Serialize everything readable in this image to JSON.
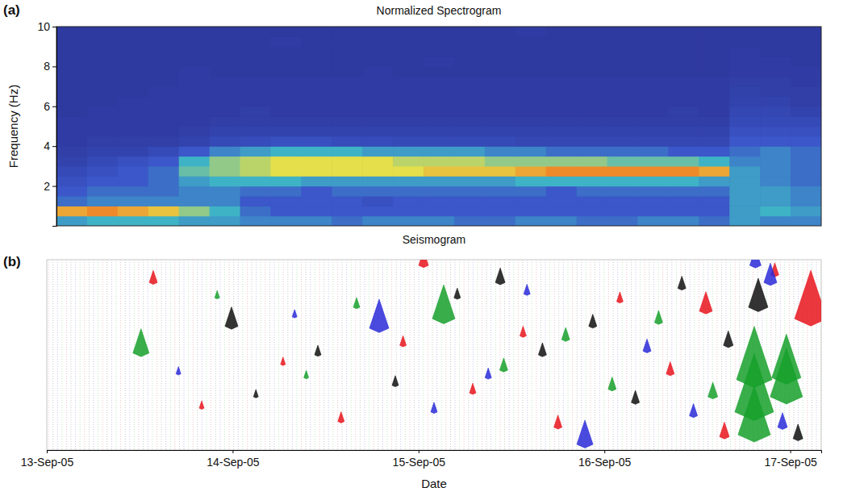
{
  "chart_data": [
    {
      "type": "heatmap",
      "panel": "(a)",
      "title": "Normalized Spectrogram",
      "y_label": "Frequency (Hz)",
      "xlim": [
        "2005-09-13T00:00",
        "2005-09-17T04:00"
      ],
      "ylim": [
        0,
        10
      ],
      "yticks": [
        2,
        4,
        6,
        8,
        10
      ],
      "tick_labels": "y",
      "zlim": [
        0,
        1
      ],
      "time_bins": [
        "2005-09-13T00:00",
        "2005-09-13T04:00",
        "2005-09-13T08:00",
        "2005-09-13T12:00",
        "2005-09-13T16:00",
        "2005-09-13T20:00",
        "2005-09-14T00:00",
        "2005-09-14T04:00",
        "2005-09-14T08:00",
        "2005-09-14T12:00",
        "2005-09-14T16:00",
        "2005-09-14T20:00",
        "2005-09-15T00:00",
        "2005-09-15T04:00",
        "2005-09-15T08:00",
        "2005-09-15T12:00",
        "2005-09-15T16:00",
        "2005-09-15T20:00",
        "2005-09-16T00:00",
        "2005-09-16T04:00",
        "2005-09-16T08:00",
        "2005-09-16T12:00",
        "2005-09-16T16:00",
        "2005-09-16T20:00",
        "2005-09-17T00:00",
        "2005-09-17T04:00"
      ],
      "frequency_bins": [
        0,
        0.5,
        1,
        1.5,
        2,
        2.5,
        3,
        3.5,
        4,
        4.5,
        5,
        5.5,
        6,
        6.5,
        7,
        7.5,
        8,
        8.5,
        9,
        9.5,
        10
      ],
      "cells": [
        [
          0.45,
          0.5,
          0.5,
          0.5,
          0.45,
          0.45,
          0.4,
          0.4,
          0.4,
          0.35,
          0.4,
          0.4,
          0.4,
          0.35,
          0.35,
          0.4,
          0.4,
          0.35,
          0.35,
          0.4,
          0.4,
          0.35,
          0.45,
          0.4,
          0.4
        ],
        [
          0.8,
          0.85,
          0.8,
          0.75,
          0.6,
          0.5,
          0.35,
          0.3,
          0.3,
          0.3,
          0.3,
          0.3,
          0.3,
          0.3,
          0.3,
          0.3,
          0.3,
          0.3,
          0.3,
          0.3,
          0.3,
          0.3,
          0.45,
          0.5,
          0.45
        ],
        [
          0.35,
          0.4,
          0.4,
          0.4,
          0.4,
          0.4,
          0.3,
          0.3,
          0.3,
          0.3,
          0.25,
          0.3,
          0.3,
          0.3,
          0.3,
          0.3,
          0.3,
          0.3,
          0.3,
          0.3,
          0.3,
          0.3,
          0.45,
          0.45,
          0.4
        ],
        [
          0.3,
          0.35,
          0.35,
          0.35,
          0.4,
          0.4,
          0.35,
          0.35,
          0.3,
          0.35,
          0.35,
          0.35,
          0.35,
          0.35,
          0.35,
          0.35,
          0.3,
          0.35,
          0.35,
          0.35,
          0.35,
          0.35,
          0.45,
          0.45,
          0.4
        ],
        [
          0.25,
          0.3,
          0.3,
          0.35,
          0.45,
          0.5,
          0.5,
          0.5,
          0.45,
          0.45,
          0.45,
          0.45,
          0.45,
          0.45,
          0.45,
          0.5,
          0.5,
          0.5,
          0.5,
          0.5,
          0.5,
          0.45,
          0.45,
          0.4,
          0.35
        ],
        [
          0.2,
          0.25,
          0.3,
          0.35,
          0.55,
          0.6,
          0.65,
          0.7,
          0.7,
          0.7,
          0.7,
          0.7,
          0.75,
          0.75,
          0.75,
          0.8,
          0.85,
          0.85,
          0.85,
          0.85,
          0.85,
          0.8,
          0.45,
          0.4,
          0.35
        ],
        [
          0.15,
          0.2,
          0.25,
          0.3,
          0.5,
          0.6,
          0.65,
          0.7,
          0.7,
          0.7,
          0.7,
          0.65,
          0.65,
          0.65,
          0.6,
          0.6,
          0.6,
          0.6,
          0.55,
          0.55,
          0.55,
          0.5,
          0.4,
          0.4,
          0.35
        ],
        [
          0.12,
          0.15,
          0.15,
          0.2,
          0.3,
          0.4,
          0.45,
          0.5,
          0.5,
          0.5,
          0.45,
          0.45,
          0.45,
          0.45,
          0.4,
          0.4,
          0.35,
          0.35,
          0.35,
          0.35,
          0.3,
          0.3,
          0.35,
          0.4,
          0.35
        ],
        [
          0.1,
          0.12,
          0.12,
          0.12,
          0.15,
          0.2,
          0.22,
          0.25,
          0.25,
          0.22,
          0.22,
          0.2,
          0.2,
          0.2,
          0.2,
          0.18,
          0.18,
          0.18,
          0.18,
          0.18,
          0.18,
          0.18,
          0.3,
          0.3,
          0.3
        ],
        [
          0.1,
          0.1,
          0.1,
          0.1,
          0.12,
          0.15,
          0.15,
          0.15,
          0.15,
          0.15,
          0.15,
          0.15,
          0.15,
          0.15,
          0.15,
          0.15,
          0.15,
          0.15,
          0.15,
          0.15,
          0.15,
          0.15,
          0.25,
          0.25,
          0.25
        ],
        [
          0.1,
          0.1,
          0.1,
          0.1,
          0.1,
          0.12,
          0.12,
          0.12,
          0.12,
          0.12,
          0.12,
          0.12,
          0.12,
          0.12,
          0.12,
          0.12,
          0.12,
          0.12,
          0.12,
          0.12,
          0.12,
          0.12,
          0.2,
          0.2,
          0.2
        ],
        [
          0.08,
          0.1,
          0.1,
          0.1,
          0.1,
          0.1,
          0.12,
          0.1,
          0.1,
          0.1,
          0.1,
          0.1,
          0.1,
          0.1,
          0.1,
          0.1,
          0.1,
          0.1,
          0.1,
          0.1,
          0.12,
          0.1,
          0.18,
          0.18,
          0.15
        ],
        [
          0.08,
          0.08,
          0.1,
          0.1,
          0.1,
          0.1,
          0.1,
          0.1,
          0.1,
          0.1,
          0.1,
          0.1,
          0.1,
          0.1,
          0.1,
          0.1,
          0.1,
          0.1,
          0.1,
          0.1,
          0.1,
          0.1,
          0.15,
          0.15,
          0.12
        ],
        [
          0.08,
          0.08,
          0.08,
          0.1,
          0.1,
          0.1,
          0.1,
          0.1,
          0.1,
          0.1,
          0.1,
          0.1,
          0.1,
          0.1,
          0.1,
          0.1,
          0.1,
          0.1,
          0.1,
          0.1,
          0.1,
          0.1,
          0.14,
          0.12,
          0.12
        ],
        [
          0.08,
          0.08,
          0.08,
          0.08,
          0.1,
          0.1,
          0.1,
          0.1,
          0.1,
          0.1,
          0.1,
          0.1,
          0.1,
          0.1,
          0.1,
          0.1,
          0.1,
          0.1,
          0.1,
          0.1,
          0.1,
          0.1,
          0.12,
          0.12,
          0.1
        ],
        [
          0.08,
          0.08,
          0.08,
          0.08,
          0.1,
          0.08,
          0.08,
          0.08,
          0.08,
          0.08,
          0.1,
          0.08,
          0.08,
          0.08,
          0.08,
          0.08,
          0.08,
          0.08,
          0.08,
          0.08,
          0.08,
          0.08,
          0.1,
          0.1,
          0.1
        ],
        [
          0.08,
          0.08,
          0.08,
          0.08,
          0.08,
          0.08,
          0.08,
          0.08,
          0.08,
          0.08,
          0.08,
          0.08,
          0.1,
          0.08,
          0.08,
          0.08,
          0.08,
          0.08,
          0.08,
          0.08,
          0.08,
          0.08,
          0.1,
          0.1,
          0.08
        ],
        [
          0.08,
          0.08,
          0.08,
          0.08,
          0.08,
          0.08,
          0.08,
          0.08,
          0.08,
          0.08,
          0.08,
          0.08,
          0.08,
          0.08,
          0.08,
          0.08,
          0.08,
          0.08,
          0.08,
          0.08,
          0.08,
          0.08,
          0.1,
          0.08,
          0.08
        ],
        [
          0.08,
          0.08,
          0.08,
          0.08,
          0.08,
          0.08,
          0.08,
          0.1,
          0.08,
          0.08,
          0.08,
          0.08,
          0.08,
          0.08,
          0.08,
          0.08,
          0.08,
          0.08,
          0.08,
          0.08,
          0.08,
          0.08,
          0.08,
          0.08,
          0.08
        ],
        [
          0.08,
          0.08,
          0.08,
          0.08,
          0.08,
          0.08,
          0.08,
          0.08,
          0.08,
          0.08,
          0.08,
          0.08,
          0.08,
          0.08,
          0.08,
          0.1,
          0.08,
          0.08,
          0.08,
          0.08,
          0.08,
          0.08,
          0.08,
          0.08,
          0.08
        ]
      ]
    },
    {
      "type": "scatter",
      "panel": "(b)",
      "title": "Seismogram",
      "x_label": "Date",
      "xlim": [
        "2005-09-13T00:00",
        "2005-09-17T04:00"
      ],
      "xticks": [
        {
          "value": "2005-09-13T00:00",
          "label": "13-Sep-05"
        },
        {
          "value": "2005-09-14T00:00",
          "label": "14-Sep-05"
        },
        {
          "value": "2005-09-15T00:00",
          "label": "15-Sep-05"
        },
        {
          "value": "2005-09-16T00:00",
          "label": "16-Sep-05"
        },
        {
          "value": "2005-09-17T00:00",
          "label": "17-Sep-05"
        }
      ],
      "ylim": [
        0,
        1
      ],
      "tick_labels": "x",
      "marker": "spike",
      "series": [
        {
          "color": "#e8141c",
          "x": [
            "2005-09-13T13:45",
            "2005-09-13T20:00",
            "2005-09-14T06:30",
            "2005-09-14T14:00",
            "2005-09-14T22:00",
            "2005-09-15T00:39",
            "2005-09-15T07:00",
            "2005-09-15T13:30",
            "2005-09-15T18:00",
            "2005-09-16T02:00",
            "2005-09-16T08:30",
            "2005-09-16T13:06",
            "2005-09-16T15:30",
            "2005-09-16T22:00",
            "2005-09-17T02:39"
          ],
          "values": [
            0.12,
            0.78,
            0.55,
            0.85,
            0.45,
            0.03,
            0.7,
            0.4,
            0.88,
            0.22,
            0.6,
            0.27,
            0.93,
            0.08,
            0.31
          ],
          "size": [
            5,
            3,
            3,
            4,
            4,
            6,
            4,
            4,
            5,
            4,
            5,
            8,
            6,
            5,
            20
          ]
        },
        {
          "color": "#111111",
          "x": [
            "2005-09-13T23:51",
            "2005-09-14T03:00",
            "2005-09-14T11:00",
            "2005-09-14T21:00",
            "2005-09-15T05:00",
            "2005-09-15T10:33",
            "2005-09-15T16:00",
            "2005-09-15T22:30",
            "2005-09-16T04:00",
            "2005-09-16T10:00",
            "2005-09-16T16:00",
            "2005-09-16T19:52",
            "2005-09-17T01:00"
          ],
          "values": [
            0.35,
            0.72,
            0.5,
            0.66,
            0.2,
            0.12,
            0.5,
            0.35,
            0.75,
            0.15,
            0.45,
            0.25,
            0.94
          ],
          "size": [
            8,
            3,
            4,
            4,
            4,
            6,
            5,
            5,
            5,
            5,
            6,
            12,
            6
          ]
        },
        {
          "color": "#2a2ad8",
          "x": [
            "2005-09-13T17:00",
            "2005-09-14T08:00",
            "2005-09-14T18:55",
            "2005-09-15T02:00",
            "2005-09-15T09:00",
            "2005-09-15T14:00",
            "2005-09-15T21:29",
            "2005-09-16T05:30",
            "2005-09-16T11:30",
            "2005-09-16T19:30",
            "2005-09-16T21:26",
            "2005-09-16T23:00"
          ],
          "values": [
            0.6,
            0.3,
            0.36,
            0.8,
            0.62,
            0.18,
            0.97,
            0.48,
            0.82,
            0.03,
            0.12,
            0.88
          ],
          "size": [
            3,
            3,
            12,
            4,
            4,
            4,
            10,
            5,
            5,
            7,
            8,
            6
          ]
        },
        {
          "color": "#16a02a",
          "x": [
            "2005-09-13T12:10",
            "2005-09-13T22:00",
            "2005-09-14T09:30",
            "2005-09-14T16:00",
            "2005-09-15T03:15",
            "2005-09-15T11:00",
            "2005-09-15T19:00",
            "2005-09-16T01:00",
            "2005-09-16T07:00",
            "2005-09-16T14:00",
            "2005-09-16T19:21",
            "2005-09-16T19:21",
            "2005-09-16T19:21",
            "2005-09-16T23:30",
            "2005-09-16T23:30"
          ],
          "values": [
            0.49,
            0.2,
            0.62,
            0.25,
            0.31,
            0.58,
            0.42,
            0.68,
            0.33,
            0.72,
            0.63,
            0.8,
            0.92,
            0.62,
            0.72
          ],
          "size": [
            10,
            3,
            3,
            4,
            14,
            5,
            5,
            5,
            5,
            6,
            22,
            24,
            20,
            18,
            20
          ]
        }
      ]
    }
  ]
}
